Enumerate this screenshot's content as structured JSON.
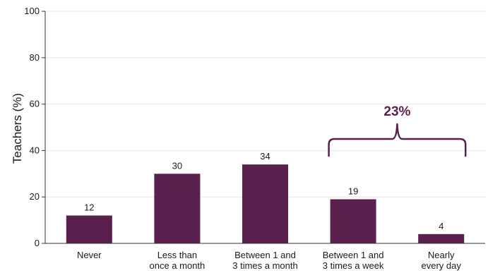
{
  "chart_data": {
    "type": "bar",
    "categories": [
      [
        "Never"
      ],
      [
        "Less than",
        "once a month"
      ],
      [
        "Between 1 and",
        "3 times a month"
      ],
      [
        "Between 1 and",
        "3 times a week"
      ],
      [
        "Nearly",
        "every day"
      ]
    ],
    "values": [
      12,
      30,
      34,
      19,
      4
    ],
    "data_labels": [
      "12",
      "30",
      "34",
      "19",
      "4"
    ],
    "ylabel": "Teachers (%)",
    "ylim": [
      0,
      100
    ],
    "yticks": [
      0,
      20,
      40,
      60,
      80,
      100
    ],
    "grid": true,
    "bar_color": "#5b1f4d",
    "annotation": {
      "label": "23%",
      "spans_categories": [
        3,
        4
      ],
      "color": "#5b1f4d"
    }
  }
}
